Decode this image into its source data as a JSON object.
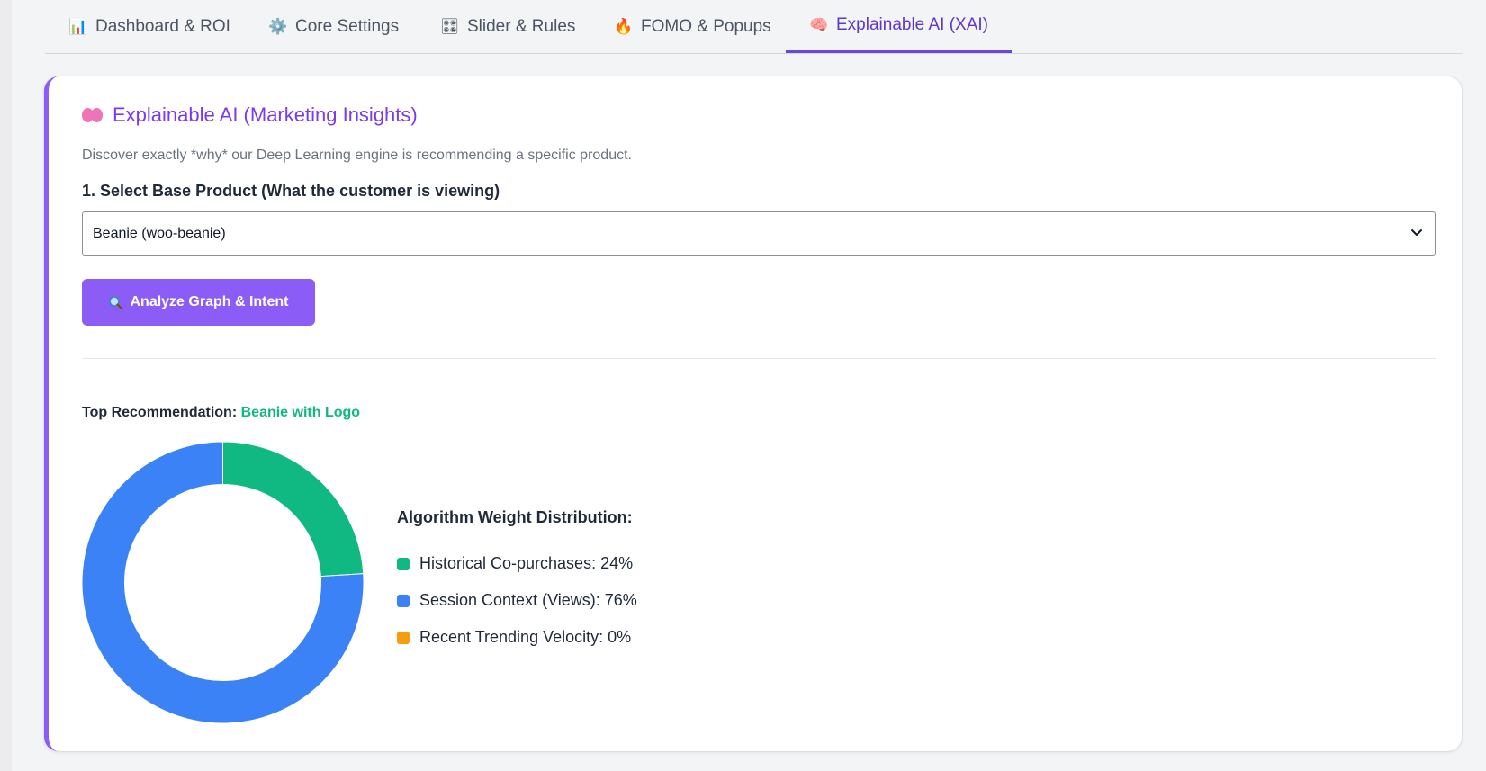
{
  "tabs": [
    {
      "label": "Dashboard & ROI",
      "icon": "bar-chart-icon",
      "glyph": "📊",
      "active": false
    },
    {
      "label": "Core Settings",
      "icon": "gear-icon",
      "glyph": "⚙️",
      "active": false
    },
    {
      "label": "Slider & Rules",
      "icon": "slider-grid-icon",
      "glyph": "🎛",
      "active": false
    },
    {
      "label": "FOMO & Popups",
      "icon": "fire-icon",
      "glyph": "🔥",
      "active": false
    },
    {
      "label": "Explainable AI (XAI)",
      "icon": "brain-icon",
      "glyph": "🧠",
      "active": true
    }
  ],
  "panel": {
    "title": "Explainable AI (Marketing Insights)",
    "description": "Discover exactly *why* our Deep Learning engine is recommending a specific product.",
    "select_label": "1. Select Base Product (What the customer is viewing)",
    "selected_product": "Beanie (woo-beanie)",
    "analyze_button": "Analyze Graph & Intent",
    "top_recommendation_label": "Top Recommendation:",
    "top_recommendation_value": "Beanie with Logo"
  },
  "colors": {
    "accent": "#8b5cf6",
    "historical": "#10b981",
    "session": "#3b82f6",
    "trending": "#f59e0b"
  },
  "chart_data": {
    "type": "pie",
    "title": "Algorithm Weight Distribution:",
    "series": [
      {
        "name": "Historical Co-purchases",
        "value": 24,
        "color": "#10b981"
      },
      {
        "name": "Session Context (Views)",
        "value": 76,
        "color": "#3b82f6"
      },
      {
        "name": "Recent Trending Velocity",
        "value": 0,
        "color": "#f59e0b"
      }
    ],
    "legend_labels": [
      "Historical Co-purchases: 24%",
      "Session Context (Views): 76%",
      "Recent Trending Velocity: 0%"
    ],
    "legend": "right"
  }
}
